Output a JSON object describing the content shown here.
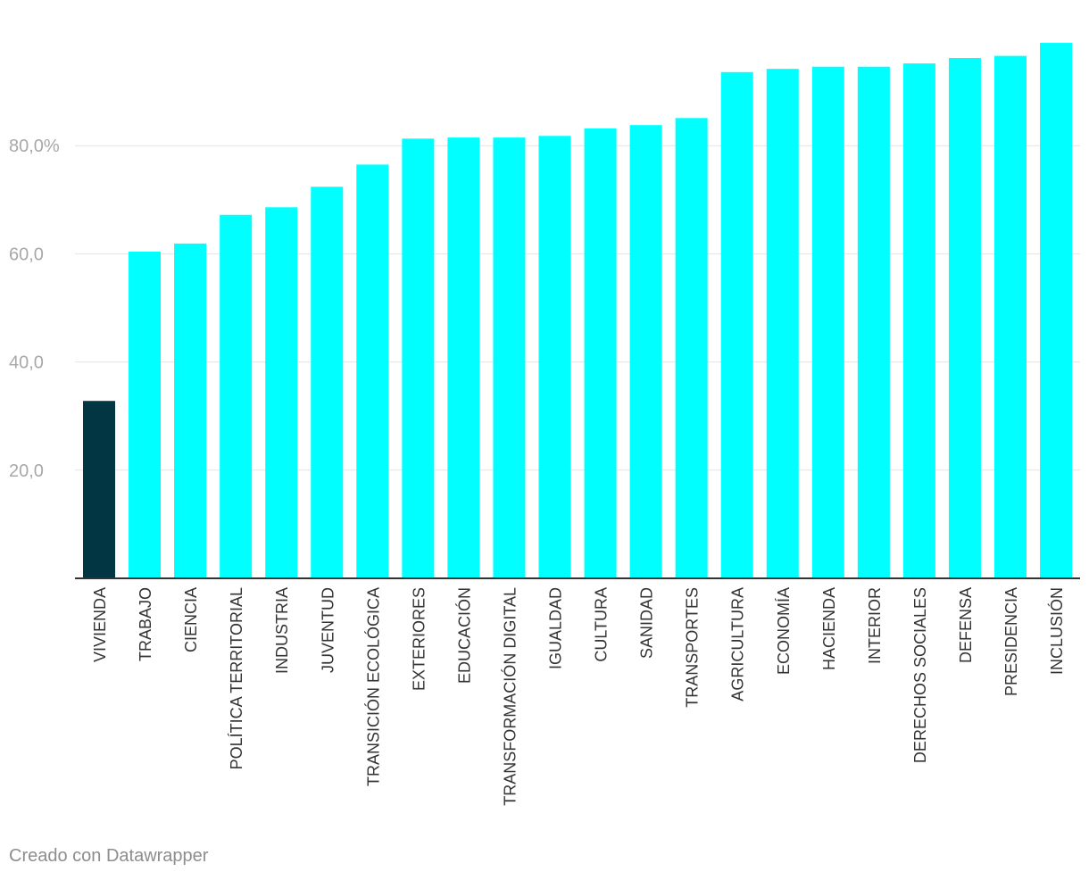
{
  "chart_data": {
    "type": "bar",
    "categories": [
      "VIVIENDA",
      "TRABAJO",
      "CIENCIA",
      "POLÍTICA TERRITORIAL",
      "INDUSTRIA",
      "JUVENTUD",
      "TRANSICIÓN ECOLÓGICA",
      "EXTERIORES",
      "EDUCACIÓN",
      "TRANSFORMACIÓN DIGITAL",
      "IGUALDAD",
      "CULTURA",
      "SANIDAD",
      "TRANSPORTES",
      "AGRICULTURA",
      "ECONOMÍA",
      "HACIENDA",
      "INTERIOR",
      "DERECHOS SOCIALES",
      "DEFENSA",
      "PRESIDENCIA",
      "INCLUSIÓN"
    ],
    "values": [
      32.8,
      60.4,
      61.9,
      67.2,
      68.6,
      72.4,
      76.5,
      81.3,
      81.5,
      81.5,
      81.8,
      83.2,
      83.8,
      85.1,
      93.6,
      94.2,
      94.6,
      94.6,
      95.2,
      96.2,
      96.6,
      99.0
    ],
    "highlight_index": 0,
    "colors": {
      "highlight": "#023642",
      "default": "#00ffff",
      "grid": "#e3e3e3",
      "axis": "#333333",
      "tick_label": "#a8a8a8",
      "category_label": "#333333"
    },
    "yticks": [
      {
        "value": 20,
        "label": "20,0"
      },
      {
        "value": 40,
        "label": "40,0"
      },
      {
        "value": 60,
        "label": "60,0"
      },
      {
        "value": 80,
        "label": "80,0%"
      }
    ],
    "ylim": [
      0,
      100
    ],
    "grid": true
  },
  "footer": {
    "credit": "Creado con Datawrapper"
  }
}
